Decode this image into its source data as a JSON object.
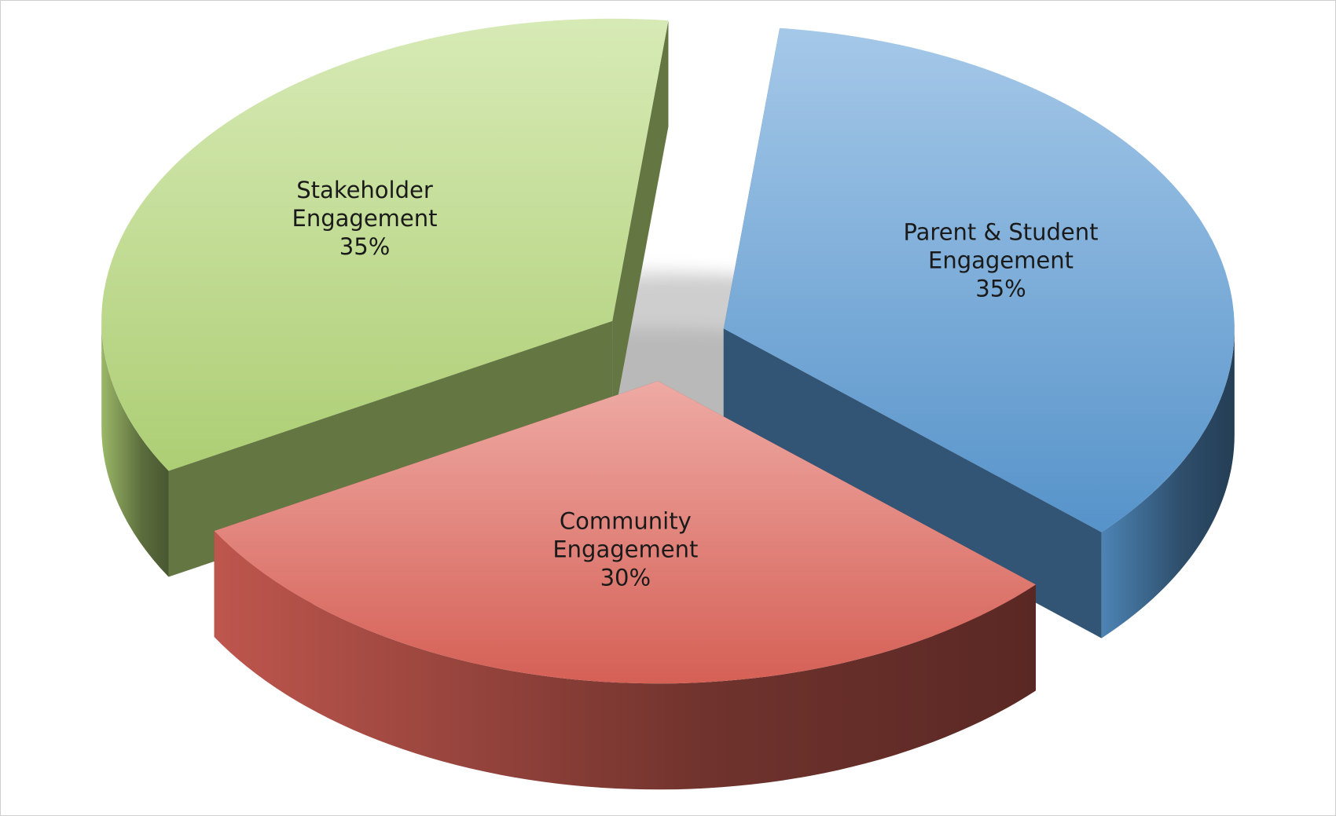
{
  "chart_data": {
    "type": "pie",
    "style": "3d-exploded",
    "title": "",
    "slices": [
      {
        "name": "Parent & Student Engagement",
        "label_lines": [
          "Parent & Student",
          "Engagement"
        ],
        "value": 35,
        "value_label": "35%",
        "color": "#5b9bd5"
      },
      {
        "name": "Community Engagement",
        "label_lines": [
          "Community",
          "Engagement"
        ],
        "value": 30,
        "value_label": "30%",
        "color": "#e0655a"
      },
      {
        "name": "Stakeholder Engagement",
        "label_lines": [
          "Stakeholder",
          "Engagement"
        ],
        "value": 35,
        "value_label": "35%",
        "color": "#b6d97a"
      }
    ],
    "legend": "none"
  }
}
